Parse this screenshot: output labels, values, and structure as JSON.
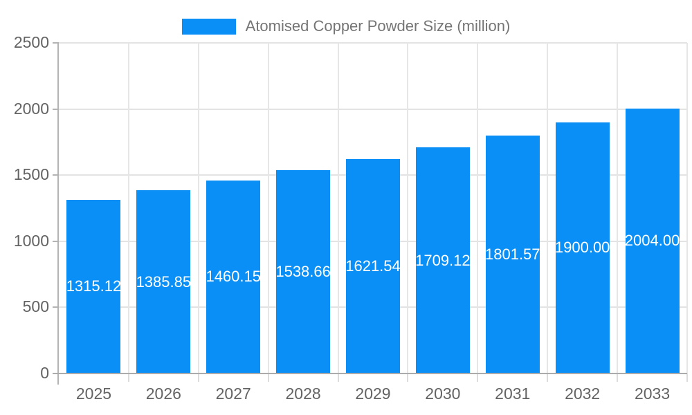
{
  "legend": {
    "label": "Atomised Copper Powder Size (million)"
  },
  "chart_data": {
    "type": "bar",
    "title": "Atomised Copper Powder Size (million)",
    "categories": [
      "2025",
      "2026",
      "2027",
      "2028",
      "2029",
      "2030",
      "2031",
      "2032",
      "2033"
    ],
    "values": [
      1315.12,
      1385.85,
      1460.15,
      1538.66,
      1621.54,
      1709.12,
      1801.57,
      1900.0,
      2004.0
    ],
    "value_labels": [
      "1315.12",
      "1385.85",
      "1460.15",
      "1538.66",
      "1621.54",
      "1709.12",
      "1801.57",
      "1900.00",
      "2004.00"
    ],
    "xlabel": "",
    "ylabel": "",
    "ylim": [
      0,
      2500
    ],
    "yticks": [
      0,
      500,
      1000,
      1500,
      2000,
      2500
    ],
    "grid": true,
    "legend_position": "top",
    "bar_color": "#0a8ff7",
    "value_label_color": "#ffffff",
    "axis_text_color": "#636363",
    "legend_text_color": "#757575",
    "gridline_color": "#e3e3e3",
    "axis_line_color": "#b0b0b0"
  }
}
